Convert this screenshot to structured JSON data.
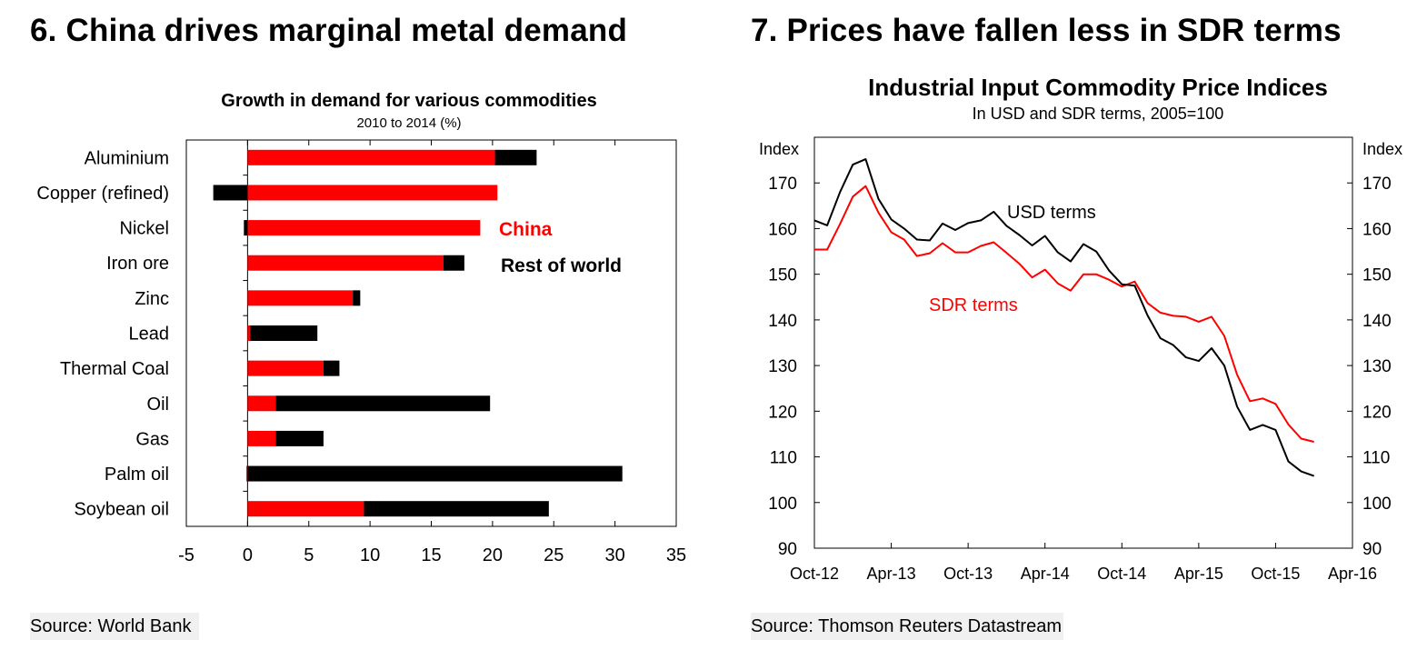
{
  "left_panel": {
    "heading": "6. China drives marginal metal demand",
    "source": "Source: World  Bank"
  },
  "right_panel": {
    "heading": "7. Prices have fallen less in SDR terms",
    "source": "Source: Thomson Reuters Datastream"
  },
  "chart_data": [
    {
      "type": "bar",
      "orientation": "horizontal",
      "stacked": true,
      "title": "Growth in demand for various commodities",
      "subtitle": "2010 to 2014 (%)",
      "categories": [
        "Aluminium",
        "Copper (refined)",
        "Nickel",
        "Iron ore",
        "Zinc",
        "Lead",
        "Thermal  Coal",
        "Oil",
        "Gas",
        "Palm oil",
        "Soybean oil"
      ],
      "series": [
        {
          "name": "China",
          "color": "#ff0000",
          "values": [
            20.2,
            20.4,
            19.0,
            16.0,
            8.6,
            0.2,
            6.2,
            2.3,
            2.3,
            -0.1,
            9.5
          ]
        },
        {
          "name": "Rest of world",
          "color": "#000000",
          "values": [
            3.4,
            -2.8,
            -0.3,
            1.7,
            0.6,
            5.5,
            1.3,
            17.5,
            3.9,
            30.6,
            15.1
          ]
        }
      ],
      "xlim": [
        -5,
        35
      ],
      "xticks": [
        -5,
        0,
        5,
        10,
        15,
        20,
        25,
        30,
        35
      ],
      "legend": [
        "China",
        "Rest of world"
      ]
    },
    {
      "type": "line",
      "title": "Industrial Input Commodity Price Indices",
      "subtitle": "In USD and SDR terms, 2005=100",
      "ylabel_left": "Index",
      "ylabel_right": "Index",
      "ylim": [
        90,
        180
      ],
      "yticks": [
        90,
        100,
        110,
        120,
        130,
        140,
        150,
        160,
        170
      ],
      "xlim": [
        0,
        42
      ],
      "xtick_labels": [
        "Oct-12",
        "Apr-13",
        "Oct-13",
        "Apr-14",
        "Oct-14",
        "Apr-15",
        "Oct-15",
        "Apr-16"
      ],
      "x": [
        0,
        1,
        2,
        3,
        4,
        5,
        6,
        7,
        8,
        9,
        10,
        11,
        12,
        13,
        14,
        15,
        16,
        17,
        18,
        19,
        20,
        21,
        22,
        23,
        24,
        25,
        26,
        27,
        28,
        29,
        30,
        31,
        32,
        33,
        34,
        35,
        36,
        37,
        38,
        39
      ],
      "series": [
        {
          "name": "USD terms",
          "color": "#000000",
          "values": [
            161.8,
            160.7,
            168.0,
            174.0,
            175.2,
            166.5,
            162.0,
            160.0,
            157.6,
            157.4,
            161.1,
            159.7,
            161.2,
            161.8,
            163.7,
            160.6,
            158.6,
            156.3,
            158.4,
            154.8,
            152.8,
            156.6,
            155.0,
            150.8,
            147.8,
            147.5,
            141.0,
            136.0,
            134.5,
            131.8,
            131.0,
            133.8,
            130.0,
            121.0,
            115.9,
            117.0,
            115.9,
            109.0,
            106.8,
            105.8
          ]
        },
        {
          "name": "SDR terms",
          "color": "#ff0000",
          "values": [
            155.4,
            155.4,
            161.0,
            167.0,
            169.3,
            163.5,
            159.2,
            157.6,
            154.0,
            154.6,
            156.8,
            154.8,
            154.8,
            156.2,
            157.0,
            154.7,
            152.3,
            149.3,
            151.0,
            148.0,
            146.4,
            150.0,
            150.0,
            148.8,
            147.3,
            148.4,
            143.7,
            141.6,
            140.9,
            140.7,
            139.6,
            140.7,
            136.5,
            128.0,
            122.2,
            122.8,
            121.6,
            117.1,
            114.0,
            113.3
          ]
        }
      ],
      "annotations": [
        "USD terms",
        "SDR terms"
      ]
    }
  ]
}
